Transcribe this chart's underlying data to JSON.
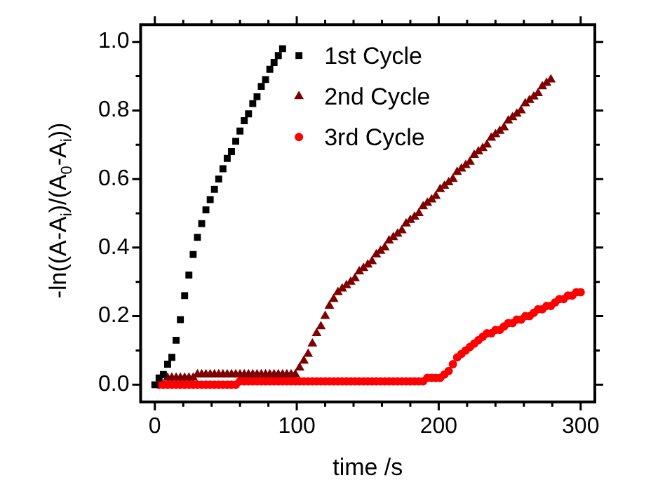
{
  "chart_data": {
    "type": "scatter",
    "xlabel": "time /s",
    "ylabel": "-ln((A-A$_{i}$)/(A$_{0}$-A$_{i}$))",
    "xlim": [
      -10,
      310
    ],
    "ylim": [
      -0.05,
      1.05
    ],
    "xticks": [
      0,
      {
        "value": 20,
        "label": null
      },
      {
        "value": 40,
        "label": null
      },
      {
        "value": 60,
        "label": null
      },
      {
        "value": 80,
        "label": null
      },
      100,
      {
        "value": 120,
        "label": null
      },
      {
        "value": 140,
        "label": null
      },
      {
        "value": 160,
        "label": null
      },
      {
        "value": 180,
        "label": null
      },
      200,
      {
        "value": 220,
        "label": null
      },
      {
        "value": 240,
        "label": null
      },
      {
        "value": 260,
        "label": null
      },
      {
        "value": 280,
        "label": null
      },
      300
    ],
    "yticks": [
      {
        "value": 0,
        "label": "0.0"
      },
      {
        "value": 0.1,
        "label": null
      },
      {
        "value": 0.2,
        "label": "0.2"
      },
      {
        "value": 0.3,
        "label": null
      },
      {
        "value": 0.4,
        "label": "0.4"
      },
      {
        "value": 0.5,
        "label": null
      },
      {
        "value": 0.6,
        "label": "0.6"
      },
      {
        "value": 0.7,
        "label": null
      },
      {
        "value": 0.8,
        "label": "0.8"
      },
      {
        "value": 0.9,
        "label": null
      },
      {
        "value": 1,
        "label": "1.0"
      }
    ],
    "legend": "top",
    "grid": false,
    "series": [
      {
        "name": "1st Cycle",
        "color": "#000000",
        "marker": "square",
        "x": [
          0,
          3,
          6,
          9,
          12,
          15,
          18,
          21,
          24,
          27,
          30,
          33,
          36,
          39,
          42,
          45,
          48,
          51,
          54,
          57,
          60,
          63,
          66,
          69,
          72,
          75,
          78,
          81,
          84,
          87,
          90
        ],
        "values": [
          0,
          0.02,
          0.03,
          0.06,
          0.08,
          0.13,
          0.19,
          0.26,
          0.32,
          0.38,
          0.43,
          0.47,
          0.51,
          0.54,
          0.57,
          0.6,
          0.63,
          0.66,
          0.68,
          0.71,
          0.74,
          0.77,
          0.79,
          0.82,
          0.84,
          0.87,
          0.89,
          0.92,
          0.94,
          0.96,
          0.98
        ]
      },
      {
        "name": "2nd Cycle",
        "color": "#7f0000",
        "marker": "triangle",
        "x": [
          9,
          12,
          15,
          18,
          21,
          24,
          27,
          30,
          33,
          36,
          39,
          42,
          45,
          48,
          51,
          54,
          57,
          60,
          63,
          66,
          69,
          72,
          75,
          78,
          81,
          84,
          87,
          90,
          93,
          96,
          99,
          102,
          105,
          108,
          111,
          114,
          117,
          120,
          123,
          126,
          129,
          132,
          135,
          138,
          141,
          144,
          147,
          150,
          153,
          156,
          159,
          162,
          165,
          168,
          171,
          174,
          177,
          180,
          183,
          186,
          189,
          192,
          195,
          198,
          201,
          204,
          207,
          210,
          213,
          216,
          219,
          222,
          225,
          228,
          231,
          234,
          237,
          240,
          243,
          246,
          249,
          252,
          255,
          258,
          261,
          264,
          267,
          270,
          273,
          276,
          279
        ],
        "values": [
          0.02,
          0.02,
          0.02,
          0.02,
          0.02,
          0.02,
          0.02,
          0.03,
          0.03,
          0.03,
          0.03,
          0.03,
          0.03,
          0.03,
          0.03,
          0.03,
          0.03,
          0.03,
          0.03,
          0.03,
          0.03,
          0.03,
          0.03,
          0.03,
          0.03,
          0.03,
          0.03,
          0.03,
          0.03,
          0.03,
          0.03,
          0.05,
          0.07,
          0.09,
          0.12,
          0.15,
          0.17,
          0.2,
          0.23,
          0.25,
          0.27,
          0.28,
          0.29,
          0.3,
          0.31,
          0.33,
          0.34,
          0.35,
          0.36,
          0.38,
          0.39,
          0.4,
          0.42,
          0.43,
          0.44,
          0.45,
          0.47,
          0.48,
          0.49,
          0.5,
          0.52,
          0.53,
          0.54,
          0.55,
          0.57,
          0.58,
          0.59,
          0.6,
          0.62,
          0.63,
          0.64,
          0.65,
          0.67,
          0.68,
          0.69,
          0.7,
          0.72,
          0.73,
          0.74,
          0.75,
          0.77,
          0.78,
          0.79,
          0.8,
          0.82,
          0.83,
          0.84,
          0.85,
          0.87,
          0.88,
          0.89
        ]
      },
      {
        "name": "3rd Cycle",
        "color": "#ff0000",
        "marker": "circle",
        "x": [
          3,
          6,
          9,
          12,
          15,
          18,
          21,
          24,
          27,
          30,
          33,
          36,
          39,
          42,
          45,
          48,
          51,
          54,
          57,
          60,
          63,
          66,
          69,
          72,
          75,
          78,
          81,
          84,
          87,
          90,
          93,
          96,
          99,
          102,
          105,
          108,
          111,
          114,
          117,
          120,
          123,
          126,
          129,
          132,
          135,
          138,
          141,
          144,
          147,
          150,
          153,
          156,
          159,
          162,
          165,
          168,
          171,
          174,
          177,
          180,
          183,
          186,
          189,
          192,
          195,
          198,
          201,
          204,
          207,
          210,
          213,
          216,
          219,
          222,
          225,
          228,
          231,
          234,
          237,
          240,
          243,
          246,
          249,
          252,
          255,
          258,
          261,
          264,
          267,
          270,
          273,
          276,
          279,
          282,
          285,
          288,
          291,
          294,
          297,
          300
        ],
        "values": [
          0,
          0,
          0,
          0,
          0,
          0,
          0,
          0,
          0,
          0,
          0,
          0,
          0,
          0,
          0,
          0,
          0,
          0,
          0,
          0.01,
          0.01,
          0.01,
          0.01,
          0.01,
          0.01,
          0.01,
          0.01,
          0.01,
          0.01,
          0.01,
          0.01,
          0.01,
          0.01,
          0.01,
          0.01,
          0.01,
          0.01,
          0.01,
          0.01,
          0.01,
          0.01,
          0.01,
          0.01,
          0.01,
          0.01,
          0.01,
          0.01,
          0.01,
          0.01,
          0.01,
          0.01,
          0.01,
          0.01,
          0.01,
          0.01,
          0.01,
          0.01,
          0.01,
          0.01,
          0.01,
          0.01,
          0.01,
          0.01,
          0.02,
          0.02,
          0.02,
          0.02,
          0.03,
          0.04,
          0.06,
          0.08,
          0.09,
          0.1,
          0.11,
          0.12,
          0.13,
          0.14,
          0.15,
          0.15,
          0.16,
          0.16,
          0.17,
          0.18,
          0.18,
          0.19,
          0.19,
          0.2,
          0.2,
          0.21,
          0.22,
          0.22,
          0.23,
          0.23,
          0.24,
          0.25,
          0.25,
          0.26,
          0.26,
          0.27,
          0.27
        ]
      }
    ]
  }
}
